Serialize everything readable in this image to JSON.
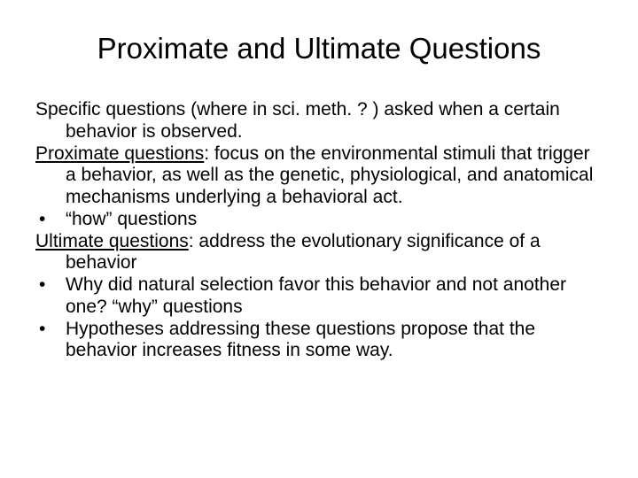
{
  "slide": {
    "title": "Proximate and Ultimate Questions",
    "title_fontsize": 33,
    "body_fontsize": 21,
    "background_color": "#ffffff",
    "text_color": "#000000",
    "font_family": "Arial",
    "items": [
      {
        "type": "para",
        "text": "Specific questions (where in sci. meth. ? ) asked when a certain behavior is observed."
      },
      {
        "type": "para",
        "underline_prefix": "Proximate questions",
        "text": ": focus on the environmental stimuli that trigger a behavior, as well as the genetic, physiological, and anatomical mechanisms underlying a behavioral act."
      },
      {
        "type": "bullet",
        "text": "“how” questions"
      },
      {
        "type": "para",
        "underline_prefix": "Ultimate questions",
        "text": ": address the evolutionary significance of a behavior"
      },
      {
        "type": "bullet",
        "text": "Why did natural selection favor this behavior and not another one? “why” questions"
      },
      {
        "type": "bullet",
        "text": "Hypotheses addressing these questions propose that the behavior increases fitness in some way."
      }
    ]
  }
}
